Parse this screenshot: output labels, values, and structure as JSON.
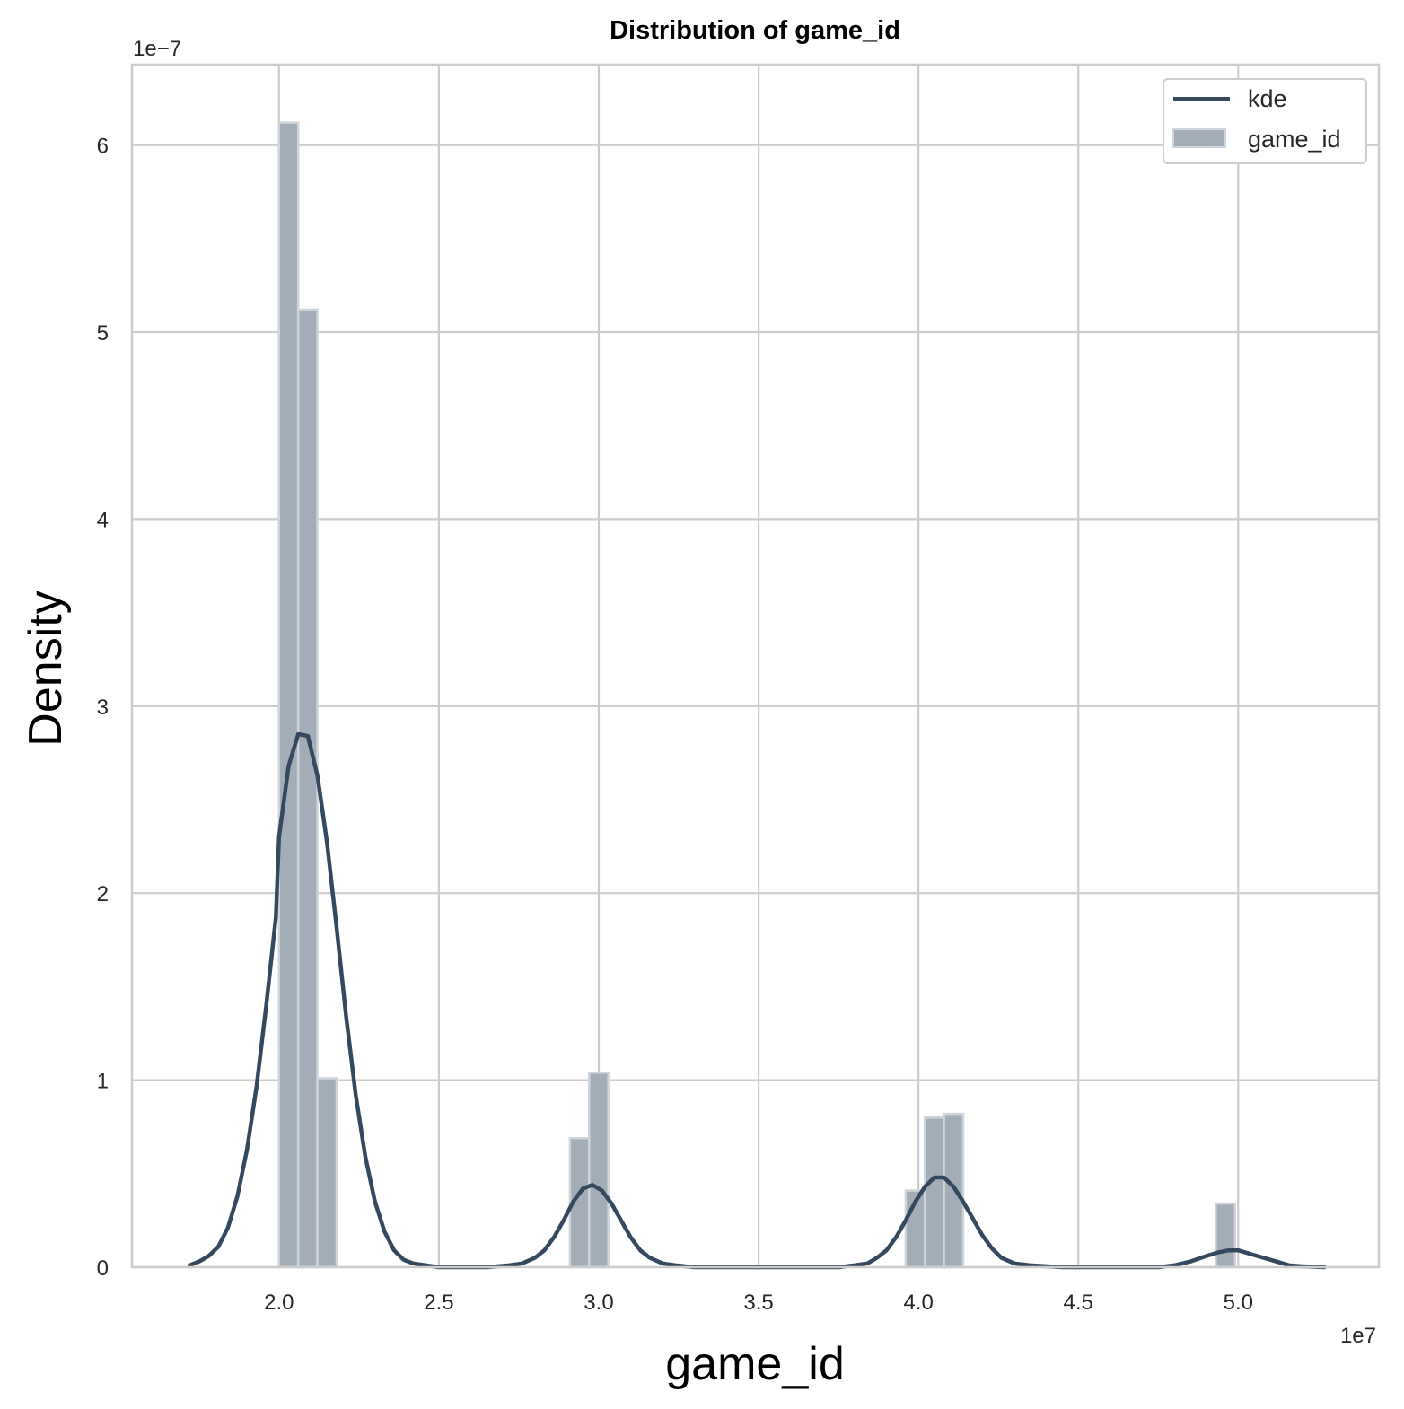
{
  "chart_data": {
    "type": "histogram+kde",
    "title": "Distribution of game_id",
    "xlabel": "game_id",
    "ylabel": "Density",
    "x_multiplier": "1e7",
    "y_multiplier": "1e−7",
    "xlim": [
      1.54,
      5.44
    ],
    "ylim": [
      0,
      6.43
    ],
    "x_ticks": [
      2.0,
      2.5,
      3.0,
      3.5,
      4.0,
      4.5,
      5.0
    ],
    "x_tick_labels": [
      "2.0",
      "2.5",
      "3.0",
      "3.5",
      "4.0",
      "4.5",
      "5.0"
    ],
    "y_ticks": [
      0,
      1,
      2,
      3,
      4,
      5,
      6
    ],
    "y_tick_labels": [
      "0",
      "1",
      "2",
      "3",
      "4",
      "5",
      "6"
    ],
    "grid": true,
    "legend_position": "top-right",
    "colors": {
      "bar_fill": "#a3adb8",
      "bar_edge": "#cfd4da",
      "kde_line": "#34495e",
      "grid": "#cccccc"
    },
    "histogram": {
      "name": "game_id",
      "bin_width": 0.06,
      "bins": [
        {
          "x0": 2.0,
          "density": 6.12
        },
        {
          "x0": 2.06,
          "density": 5.12
        },
        {
          "x0": 2.12,
          "density": 1.01
        },
        {
          "x0": 2.91,
          "density": 0.69
        },
        {
          "x0": 2.97,
          "density": 1.04
        },
        {
          "x0": 3.96,
          "density": 0.41
        },
        {
          "x0": 4.02,
          "density": 0.8
        },
        {
          "x0": 4.08,
          "density": 0.82
        },
        {
          "x0": 4.93,
          "density": 0.34
        }
      ]
    },
    "kde": {
      "name": "kde",
      "points": [
        [
          1.72,
          0.01
        ],
        [
          1.75,
          0.03
        ],
        [
          1.78,
          0.06
        ],
        [
          1.81,
          0.11
        ],
        [
          1.84,
          0.21
        ],
        [
          1.87,
          0.38
        ],
        [
          1.9,
          0.63
        ],
        [
          1.93,
          0.97
        ],
        [
          1.96,
          1.4
        ],
        [
          1.99,
          1.87
        ],
        [
          2.0,
          2.3
        ],
        [
          2.03,
          2.68
        ],
        [
          2.06,
          2.85
        ],
        [
          2.09,
          2.84
        ],
        [
          2.12,
          2.63
        ],
        [
          2.15,
          2.27
        ],
        [
          2.18,
          1.82
        ],
        [
          2.21,
          1.34
        ],
        [
          2.24,
          0.92
        ],
        [
          2.27,
          0.59
        ],
        [
          2.3,
          0.35
        ],
        [
          2.33,
          0.19
        ],
        [
          2.36,
          0.09
        ],
        [
          2.39,
          0.04
        ],
        [
          2.42,
          0.02
        ],
        [
          2.5,
          0.0
        ],
        [
          2.65,
          0.0
        ],
        [
          2.72,
          0.01
        ],
        [
          2.76,
          0.02
        ],
        [
          2.8,
          0.05
        ],
        [
          2.83,
          0.09
        ],
        [
          2.86,
          0.16
        ],
        [
          2.89,
          0.25
        ],
        [
          2.92,
          0.35
        ],
        [
          2.95,
          0.42
        ],
        [
          2.98,
          0.44
        ],
        [
          3.01,
          0.41
        ],
        [
          3.04,
          0.34
        ],
        [
          3.07,
          0.25
        ],
        [
          3.1,
          0.16
        ],
        [
          3.13,
          0.09
        ],
        [
          3.16,
          0.05
        ],
        [
          3.2,
          0.02
        ],
        [
          3.24,
          0.01
        ],
        [
          3.3,
          0.0
        ],
        [
          3.75,
          0.0
        ],
        [
          3.8,
          0.01
        ],
        [
          3.84,
          0.02
        ],
        [
          3.87,
          0.05
        ],
        [
          3.9,
          0.09
        ],
        [
          3.93,
          0.16
        ],
        [
          3.96,
          0.25
        ],
        [
          3.99,
          0.35
        ],
        [
          4.02,
          0.43
        ],
        [
          4.05,
          0.48
        ],
        [
          4.08,
          0.48
        ],
        [
          4.11,
          0.43
        ],
        [
          4.14,
          0.35
        ],
        [
          4.17,
          0.26
        ],
        [
          4.2,
          0.17
        ],
        [
          4.23,
          0.1
        ],
        [
          4.26,
          0.05
        ],
        [
          4.3,
          0.02
        ],
        [
          4.35,
          0.01
        ],
        [
          4.45,
          0.0
        ],
        [
          4.75,
          0.0
        ],
        [
          4.8,
          0.01
        ],
        [
          4.85,
          0.03
        ],
        [
          4.9,
          0.06
        ],
        [
          4.94,
          0.08
        ],
        [
          4.97,
          0.09
        ],
        [
          5.0,
          0.09
        ],
        [
          5.04,
          0.07
        ],
        [
          5.08,
          0.05
        ],
        [
          5.12,
          0.03
        ],
        [
          5.16,
          0.01
        ],
        [
          5.2,
          0.005
        ],
        [
          5.27,
          0.0
        ]
      ]
    }
  }
}
